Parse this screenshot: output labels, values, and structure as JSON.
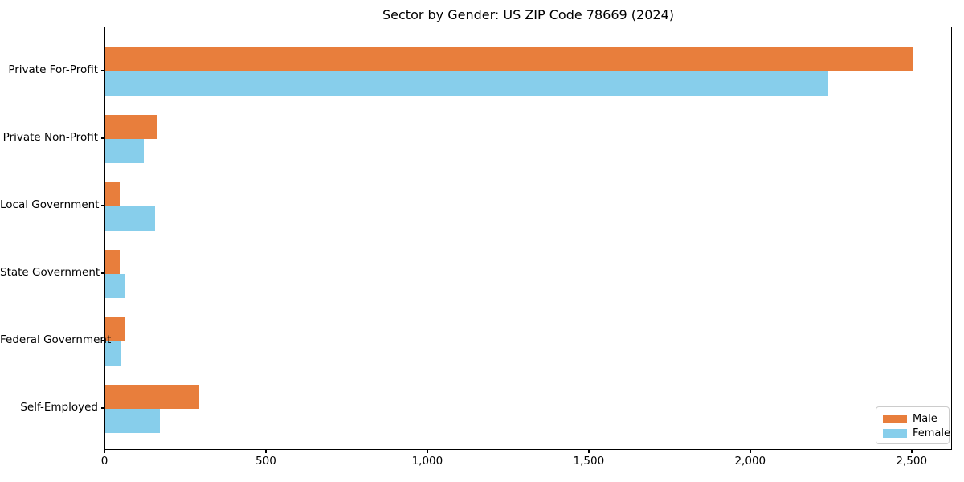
{
  "chart_data": {
    "type": "bar",
    "orientation": "horizontal",
    "title": "Sector by Gender: US ZIP Code 78669 (2024)",
    "xlabel": "",
    "ylabel": "",
    "categories": [
      "Private For-Profit",
      "Private Non-Profit",
      "Local Government",
      "State Government",
      "Federal Government",
      "Self-Employed"
    ],
    "series": [
      {
        "name": "Male",
        "color": "#e87e3c",
        "values": [
          2500,
          160,
          45,
          45,
          60,
          290
        ]
      },
      {
        "name": "Female",
        "color": "#87ceeb",
        "values": [
          2240,
          120,
          155,
          60,
          50,
          170
        ]
      }
    ],
    "xlim": [
      0,
      2625
    ],
    "xticks": [
      0,
      500,
      1000,
      1500,
      2000,
      2500
    ],
    "xtick_labels": [
      "0",
      "500",
      "1,000",
      "1,500",
      "2,000",
      "2,500"
    ],
    "grid": false,
    "legend": {
      "position": "lower right",
      "entries": [
        "Male",
        "Female"
      ]
    },
    "colors": {
      "spine": "#000000",
      "background": "#ffffff",
      "legend_border": "#cccccc"
    }
  }
}
